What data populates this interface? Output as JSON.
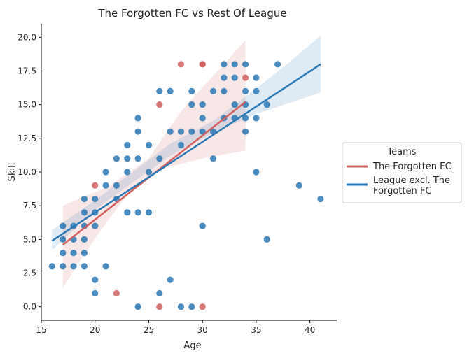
{
  "chart_data": {
    "type": "scatter",
    "title": "The Forgotten FC vs Rest Of League",
    "xlabel": "Age",
    "ylabel": "Skill",
    "xlim": [
      15,
      42.5
    ],
    "ylim": [
      -1,
      21
    ],
    "xticks": [
      15,
      20,
      25,
      30,
      35,
      40
    ],
    "xtick_labels": [
      "15",
      "20",
      "25",
      "30",
      "35",
      "40"
    ],
    "yticks": [
      0,
      2.5,
      5,
      7.5,
      10,
      12.5,
      15,
      17.5,
      20
    ],
    "ytick_labels": [
      "0.0",
      "2.5",
      "5.0",
      "7.5",
      "10.0",
      "12.5",
      "15.0",
      "17.5",
      "20.0"
    ],
    "grid": false,
    "legend": {
      "title": "Teams",
      "placement": "right"
    },
    "series": [
      {
        "name": "The Forgotten FC",
        "color": "#d1605e",
        "fit": {
          "x": [
            17,
            34
          ],
          "y": [
            4.6,
            15.2
          ]
        },
        "band": {
          "x": [
            17,
            19,
            21,
            23,
            25,
            26,
            28,
            30,
            32,
            34
          ],
          "lower": [
            1.4,
            3.9,
            6.2,
            8.3,
            9.6,
            10.2,
            10.6,
            11.0,
            11.3,
            11.6
          ],
          "upper": [
            7.5,
            8.2,
            8.8,
            9.9,
            11.0,
            12.2,
            14.5,
            16.3,
            18.0,
            19.8
          ]
        },
        "points": [
          {
            "x": 20,
            "y": 9
          },
          {
            "x": 22,
            "y": 1
          },
          {
            "x": 26,
            "y": 15
          },
          {
            "x": 26,
            "y": 0
          },
          {
            "x": 28,
            "y": 18
          },
          {
            "x": 30,
            "y": 18
          },
          {
            "x": 30,
            "y": 0
          },
          {
            "x": 34,
            "y": 17
          },
          {
            "x": 30,
            "y": 18
          }
        ]
      },
      {
        "name": "League excl. The Forgotten FC",
        "color": "#2a78b4",
        "fit": {
          "x": [
            16,
            41
          ],
          "y": [
            4.9,
            18.0
          ]
        },
        "band": {
          "x": [
            16,
            20,
            24,
            27,
            31,
            35,
            38,
            41
          ],
          "lower": [
            4.2,
            7.2,
            9.5,
            11.2,
            12.9,
            14.3,
            15.1,
            15.9
          ],
          "upper": [
            5.7,
            7.9,
            10.3,
            12.1,
            13.8,
            16.2,
            18.1,
            20.1
          ]
        },
        "points": [
          {
            "x": 16,
            "y": 3
          },
          {
            "x": 17,
            "y": 3
          },
          {
            "x": 17,
            "y": 4
          },
          {
            "x": 17,
            "y": 5
          },
          {
            "x": 17,
            "y": 6
          },
          {
            "x": 18,
            "y": 3
          },
          {
            "x": 18,
            "y": 4
          },
          {
            "x": 18,
            "y": 5
          },
          {
            "x": 18,
            "y": 6
          },
          {
            "x": 19,
            "y": 3
          },
          {
            "x": 19,
            "y": 4
          },
          {
            "x": 19,
            "y": 5
          },
          {
            "x": 19,
            "y": 6
          },
          {
            "x": 19,
            "y": 7
          },
          {
            "x": 19,
            "y": 8
          },
          {
            "x": 20,
            "y": 1
          },
          {
            "x": 20,
            "y": 2
          },
          {
            "x": 20,
            "y": 6
          },
          {
            "x": 20,
            "y": 7
          },
          {
            "x": 20,
            "y": 8
          },
          {
            "x": 21,
            "y": 3
          },
          {
            "x": 21,
            "y": 9
          },
          {
            "x": 21,
            "y": 10
          },
          {
            "x": 22,
            "y": 8
          },
          {
            "x": 22,
            "y": 9
          },
          {
            "x": 22,
            "y": 11
          },
          {
            "x": 23,
            "y": 7
          },
          {
            "x": 23,
            "y": 10
          },
          {
            "x": 23,
            "y": 11
          },
          {
            "x": 23,
            "y": 12
          },
          {
            "x": 24,
            "y": 0
          },
          {
            "x": 24,
            "y": 7
          },
          {
            "x": 24,
            "y": 11
          },
          {
            "x": 24,
            "y": 13
          },
          {
            "x": 24,
            "y": 14
          },
          {
            "x": 25,
            "y": 7
          },
          {
            "x": 25,
            "y": 10
          },
          {
            "x": 25,
            "y": 12
          },
          {
            "x": 26,
            "y": 1
          },
          {
            "x": 26,
            "y": 11
          },
          {
            "x": 26,
            "y": 16
          },
          {
            "x": 27,
            "y": 2
          },
          {
            "x": 27,
            "y": 13
          },
          {
            "x": 27,
            "y": 16
          },
          {
            "x": 28,
            "y": 0
          },
          {
            "x": 28,
            "y": 12
          },
          {
            "x": 28,
            "y": 13
          },
          {
            "x": 29,
            "y": 0
          },
          {
            "x": 29,
            "y": 13
          },
          {
            "x": 29,
            "y": 15
          },
          {
            "x": 29,
            "y": 16
          },
          {
            "x": 30,
            "y": 6
          },
          {
            "x": 30,
            "y": 13
          },
          {
            "x": 30,
            "y": 14
          },
          {
            "x": 30,
            "y": 15
          },
          {
            "x": 31,
            "y": 11
          },
          {
            "x": 31,
            "y": 13
          },
          {
            "x": 31,
            "y": 16
          },
          {
            "x": 32,
            "y": 14
          },
          {
            "x": 32,
            "y": 16
          },
          {
            "x": 32,
            "y": 17
          },
          {
            "x": 32,
            "y": 18
          },
          {
            "x": 33,
            "y": 14
          },
          {
            "x": 33,
            "y": 15
          },
          {
            "x": 33,
            "y": 17
          },
          {
            "x": 33,
            "y": 18
          },
          {
            "x": 34,
            "y": 13
          },
          {
            "x": 34,
            "y": 14
          },
          {
            "x": 34,
            "y": 15
          },
          {
            "x": 34,
            "y": 16
          },
          {
            "x": 34,
            "y": 18
          },
          {
            "x": 35,
            "y": 10
          },
          {
            "x": 35,
            "y": 14
          },
          {
            "x": 35,
            "y": 16
          },
          {
            "x": 35,
            "y": 17
          },
          {
            "x": 36,
            "y": 5
          },
          {
            "x": 36,
            "y": 15
          },
          {
            "x": 37,
            "y": 18
          },
          {
            "x": 39,
            "y": 9
          },
          {
            "x": 41,
            "y": 8
          }
        ]
      }
    ]
  }
}
